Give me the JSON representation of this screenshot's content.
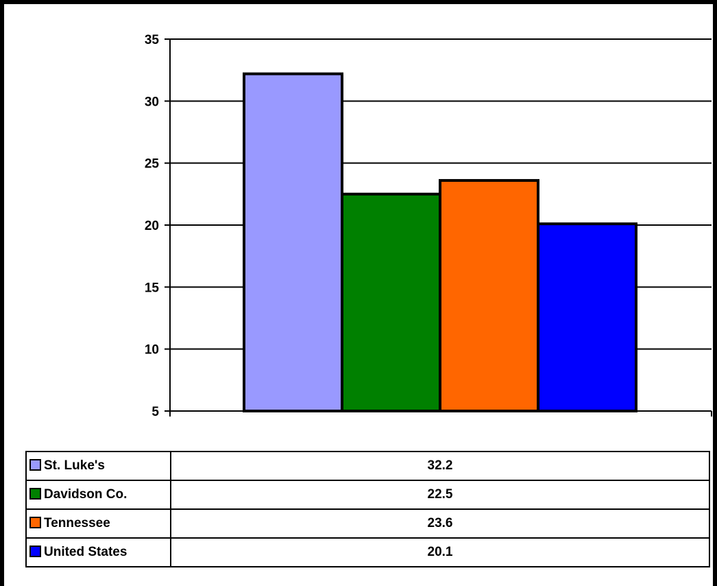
{
  "chart_data": {
    "type": "bar",
    "categories": [
      "St. Luke's",
      "Davidson Co.",
      "Tennessee",
      "United States"
    ],
    "values": [
      32.2,
      22.5,
      23.6,
      20.1
    ],
    "colors": [
      "#9999ff",
      "#008000",
      "#ff6600",
      "#0000ff"
    ],
    "ylim": [
      5,
      35
    ],
    "yticks": [
      "35",
      "30",
      "25",
      "20",
      "15",
      "10",
      "5"
    ],
    "grid": true,
    "table": {
      "rows": [
        {
          "label": "St. Luke's",
          "value": "32.2",
          "color": "#9999ff"
        },
        {
          "label": "Davidson Co.",
          "value": "22.5",
          "color": "#008000"
        },
        {
          "label": "Tennessee",
          "value": "23.6",
          "color": "#ff6600"
        },
        {
          "label": "United States",
          "value": "20.1",
          "color": "#0000ff"
        }
      ]
    }
  }
}
